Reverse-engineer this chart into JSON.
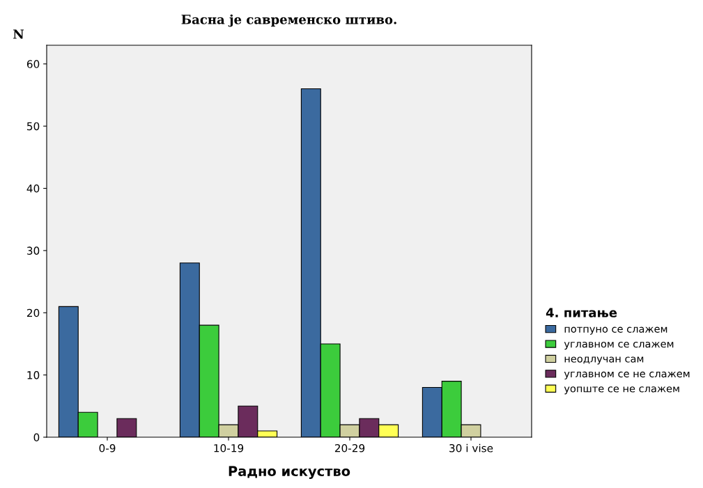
{
  "chart_data": {
    "type": "bar",
    "title": "Басна је савременско штиво.",
    "xlabel": "Радно искуство",
    "ylabel": "N",
    "legend_title": "4. питање",
    "categories": [
      "0-9",
      "10-19",
      "20-29",
      "30 i vise"
    ],
    "series": [
      {
        "name": "потпуно се слажем",
        "color": "#3b6a9f",
        "values": [
          21,
          28,
          56,
          8
        ]
      },
      {
        "name": "углавном се слажем",
        "color": "#3ccc3c",
        "values": [
          4,
          18,
          15,
          9
        ]
      },
      {
        "name": "неодлучан сам",
        "color": "#d0d0a0",
        "values": [
          null,
          2,
          2,
          2
        ]
      },
      {
        "name": "углавном се не слажем",
        "color": "#6b2c5c",
        "values": [
          3,
          5,
          3,
          null
        ]
      },
      {
        "name": "уопште се не слажем",
        "color": "#ffff55",
        "values": [
          null,
          1,
          2,
          null
        ]
      }
    ],
    "ylim": [
      0,
      63
    ],
    "yticks": [
      0,
      10,
      20,
      30,
      40,
      50,
      60
    ],
    "grid": false,
    "legend": "right"
  }
}
